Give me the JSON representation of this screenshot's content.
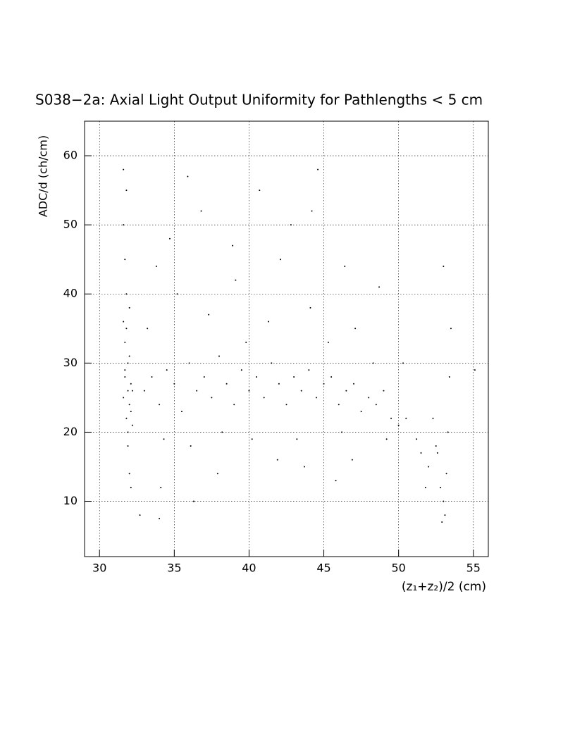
{
  "chart_data": {
    "type": "scatter",
    "title": "S038−2a: Axial Light Output Uniformity for Pathlengths < 5 cm",
    "x_label": "(z₁+z₂)/2 (cm)",
    "y_label": "ADC/d (ch/cm)",
    "color": "#000000",
    "grid": true,
    "xlim": [
      29,
      56
    ],
    "xticks": [
      30,
      35,
      40,
      45,
      50,
      55
    ],
    "ylim": [
      2,
      65
    ],
    "yticks": [
      10,
      20,
      30,
      40,
      50,
      60
    ],
    "x": [
      31.6,
      31.7,
      31.8,
      31.9,
      32.0,
      32.1,
      31.7,
      31.9,
      32.2,
      31.6,
      31.8,
      32.0,
      31.7,
      31.9,
      32.1,
      31.6,
      31.8,
      32.0,
      31.7,
      31.9,
      32.2,
      31.8,
      32.0,
      31.6,
      32.1,
      33,
      33.5,
      34,
      34.5,
      35,
      35.5,
      36,
      36.5,
      37,
      37.5,
      38,
      38.5,
      39,
      39.5,
      40,
      40.5,
      41,
      41.5,
      42,
      42.5,
      43,
      43.5,
      44,
      44.5,
      45,
      45.5,
      46,
      46.5,
      47,
      47.5,
      48,
      48.5,
      49,
      49.5,
      50,
      50.5,
      33.2,
      34.3,
      35.2,
      36.1,
      37.3,
      38.2,
      39.1,
      40.2,
      41.3,
      42.1,
      43.2,
      44.1,
      45.3,
      46.2,
      47.1,
      48.3,
      49.2,
      34.7,
      36.8,
      38.9,
      40.7,
      42.8,
      44.6,
      46.4,
      35.9,
      33.8,
      39.8,
      41.9,
      37.9,
      43.7,
      45.8,
      34.1,
      36.3,
      48.7,
      50.3,
      51.2,
      32.7,
      34.0,
      44.2,
      46.9,
      51.5,
      52,
      52.5,
      52.8,
      53,
      53.1,
      53.2,
      53.3,
      52.9,
      53.0,
      52.3,
      51.8,
      53.4,
      55.1,
      53.5,
      52.6
    ],
    "values": [
      25,
      28,
      22,
      30,
      24,
      27,
      33,
      20,
      26,
      36,
      40,
      31,
      45,
      18,
      23,
      50,
      55,
      14,
      29,
      26,
      21,
      35,
      38,
      58,
      12,
      26,
      28,
      24,
      29,
      27,
      23,
      30,
      26,
      28,
      25,
      31,
      27,
      24,
      29,
      26,
      28,
      25,
      30,
      27,
      24,
      28,
      26,
      29,
      25,
      27,
      28,
      24,
      26,
      27,
      23,
      25,
      24,
      26,
      22,
      21,
      22,
      35,
      19,
      40,
      18,
      37,
      20,
      42,
      19,
      36,
      45,
      19,
      38,
      33,
      20,
      35,
      30,
      19,
      48,
      52,
      47,
      55,
      50,
      58,
      44,
      57,
      44,
      33,
      16,
      14,
      15,
      13,
      12,
      10,
      41,
      30,
      19,
      8,
      7.5,
      52,
      16,
      17,
      15,
      18,
      12,
      10,
      8,
      14,
      20,
      7,
      44,
      22,
      12,
      28,
      29,
      35,
      17
    ]
  }
}
